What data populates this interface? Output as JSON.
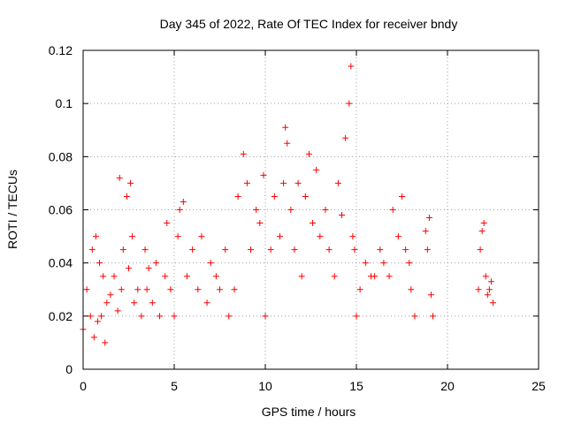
{
  "colors": {
    "series": "#ff0000",
    "grid": "#a0a0a0",
    "axis": "#000000"
  },
  "chart_data": {
    "type": "scatter",
    "title": "Day 345 of 2022, Rate Of TEC Index for receiver bndy",
    "xlabel": "GPS time / hours",
    "ylabel": "ROTI / TECUs",
    "xlim": [
      0,
      25
    ],
    "ylim": [
      0,
      0.12
    ],
    "xticks": [
      0,
      5,
      10,
      15,
      20,
      25
    ],
    "yticks": [
      0,
      0.02,
      0.04,
      0.06,
      0.08,
      0.1,
      0.12
    ],
    "xtick_labels": [
      "0",
      "5",
      "10",
      "15",
      "20",
      "25"
    ],
    "ytick_labels": [
      "0",
      "0.02",
      "0.04",
      "0.06",
      "0.08",
      "0.1",
      "0.12"
    ],
    "grid": true,
    "legend": "none",
    "marker": "plus",
    "series": [
      {
        "x": [
          0.0,
          0.2,
          0.4,
          0.5,
          0.6,
          0.7,
          0.8,
          0.9,
          1.0,
          1.1,
          1.2,
          1.3,
          1.5,
          1.7,
          1.9,
          2.0,
          2.1,
          2.2,
          2.4,
          2.5,
          2.6,
          2.7,
          2.8,
          3.0,
          3.2,
          3.4,
          3.5,
          3.6,
          3.8,
          4.0,
          4.2,
          4.5,
          4.6,
          4.8,
          5.0,
          5.2,
          5.3,
          5.5,
          5.7,
          6.0,
          6.3,
          6.5,
          6.8,
          7.0,
          7.3,
          7.5,
          7.8,
          8.0,
          8.3,
          8.5,
          8.8,
          9.0,
          9.2,
          9.5,
          9.7,
          9.9,
          10.0,
          10.3,
          10.5,
          10.8,
          11.0,
          11.1,
          11.2,
          11.4,
          11.6,
          11.8,
          12.0,
          12.2,
          12.4,
          12.6,
          12.8,
          13.0,
          13.3,
          13.5,
          13.8,
          14.0,
          14.2,
          14.4,
          14.6,
          14.7,
          14.8,
          14.9,
          15.0,
          15.2,
          15.5,
          15.8,
          16.0,
          16.3,
          16.5,
          16.8,
          17.0,
          17.3,
          17.5,
          17.7,
          17.9,
          18.0,
          18.2,
          18.8,
          18.9,
          19.0,
          19.1,
          19.2,
          21.7,
          21.8,
          21.9,
          22.0,
          22.1,
          22.2,
          22.3,
          22.4,
          22.5
        ],
        "y": [
          0.015,
          0.03,
          0.02,
          0.045,
          0.012,
          0.05,
          0.018,
          0.04,
          0.02,
          0.035,
          0.01,
          0.025,
          0.028,
          0.035,
          0.022,
          0.072,
          0.03,
          0.045,
          0.065,
          0.038,
          0.07,
          0.05,
          0.025,
          0.03,
          0.02,
          0.045,
          0.03,
          0.038,
          0.025,
          0.04,
          0.02,
          0.035,
          0.055,
          0.03,
          0.02,
          0.05,
          0.06,
          0.063,
          0.035,
          0.045,
          0.03,
          0.05,
          0.025,
          0.04,
          0.035,
          0.03,
          0.045,
          0.02,
          0.03,
          0.065,
          0.081,
          0.07,
          0.045,
          0.06,
          0.055,
          0.073,
          0.02,
          0.045,
          0.065,
          0.05,
          0.07,
          0.091,
          0.085,
          0.06,
          0.045,
          0.07,
          0.035,
          0.065,
          0.081,
          0.055,
          0.075,
          0.05,
          0.06,
          0.045,
          0.035,
          0.07,
          0.058,
          0.087,
          0.1,
          0.114,
          0.05,
          0.045,
          0.02,
          0.03,
          0.04,
          0.035,
          0.035,
          0.045,
          0.04,
          0.035,
          0.06,
          0.05,
          0.065,
          0.045,
          0.04,
          0.03,
          0.02,
          0.052,
          0.045,
          0.057,
          0.028,
          0.02,
          0.03,
          0.045,
          0.052,
          0.055,
          0.035,
          0.028,
          0.03,
          0.033,
          0.025
        ]
      }
    ]
  }
}
